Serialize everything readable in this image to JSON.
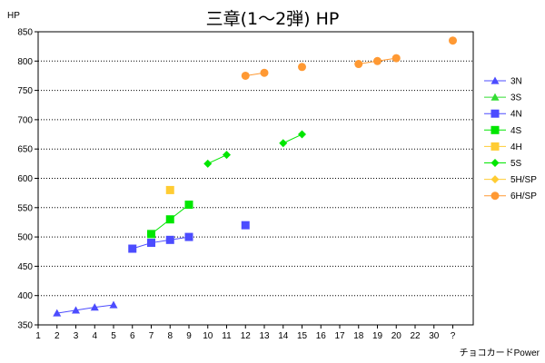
{
  "chart_data": {
    "type": "scatter",
    "title": "三章(1～2弾) HP",
    "ylabel": "HP",
    "xlabel": "チョコカードPower",
    "x_tick_labels": [
      "1",
      "2",
      "3",
      "4",
      "5",
      "6",
      "7",
      "8",
      "9",
      "10",
      "11",
      "12",
      "13",
      "14",
      "15",
      "16",
      "17",
      "18",
      "19",
      "20",
      "22",
      "30",
      "?"
    ],
    "ylim": [
      350,
      850
    ],
    "y_ticks": [
      350,
      400,
      450,
      500,
      550,
      600,
      650,
      700,
      750,
      800,
      850
    ],
    "grid": "horizontal-dotted",
    "legend_position": "right",
    "series": [
      {
        "name": "3N",
        "color": "#4c4cff",
        "marker": "triangle",
        "connected": true,
        "points": [
          [
            "2",
            370
          ],
          [
            "3",
            375
          ],
          [
            "4",
            380
          ],
          [
            "5",
            384
          ]
        ]
      },
      {
        "name": "3S",
        "color": "#33dd33",
        "marker": "triangle",
        "connected": true,
        "points": []
      },
      {
        "name": "4N",
        "color": "#4c4cff",
        "marker": "square",
        "connected": true,
        "points": [
          [
            "6",
            480
          ],
          [
            "7",
            490
          ],
          [
            "8",
            495
          ],
          [
            "9",
            500
          ],
          [
            "12",
            520
          ]
        ]
      },
      {
        "name": "4S",
        "color": "#00e600",
        "marker": "square",
        "connected": true,
        "points": [
          [
            "7",
            505
          ],
          [
            "8",
            530
          ],
          [
            "9",
            555
          ]
        ]
      },
      {
        "name": "4H",
        "color": "#ffcc33",
        "marker": "square",
        "connected": false,
        "points": [
          [
            "8",
            580
          ]
        ]
      },
      {
        "name": "5S",
        "color": "#00e600",
        "marker": "diamond",
        "connected": true,
        "points": [
          [
            "10",
            625
          ],
          [
            "11",
            640
          ],
          [
            "14",
            660
          ],
          [
            "15",
            675
          ]
        ]
      },
      {
        "name": "5H/SP",
        "color": "#ffcc33",
        "marker": "diamond",
        "connected": true,
        "points": []
      },
      {
        "name": "6H/SP",
        "color": "#ff9933",
        "marker": "circle",
        "connected": true,
        "points": [
          [
            "12",
            775
          ],
          [
            "13",
            780
          ],
          [
            "15",
            790
          ],
          [
            "18",
            795
          ],
          [
            "19",
            800
          ],
          [
            "20",
            805
          ],
          [
            "?",
            835
          ]
        ]
      }
    ]
  }
}
